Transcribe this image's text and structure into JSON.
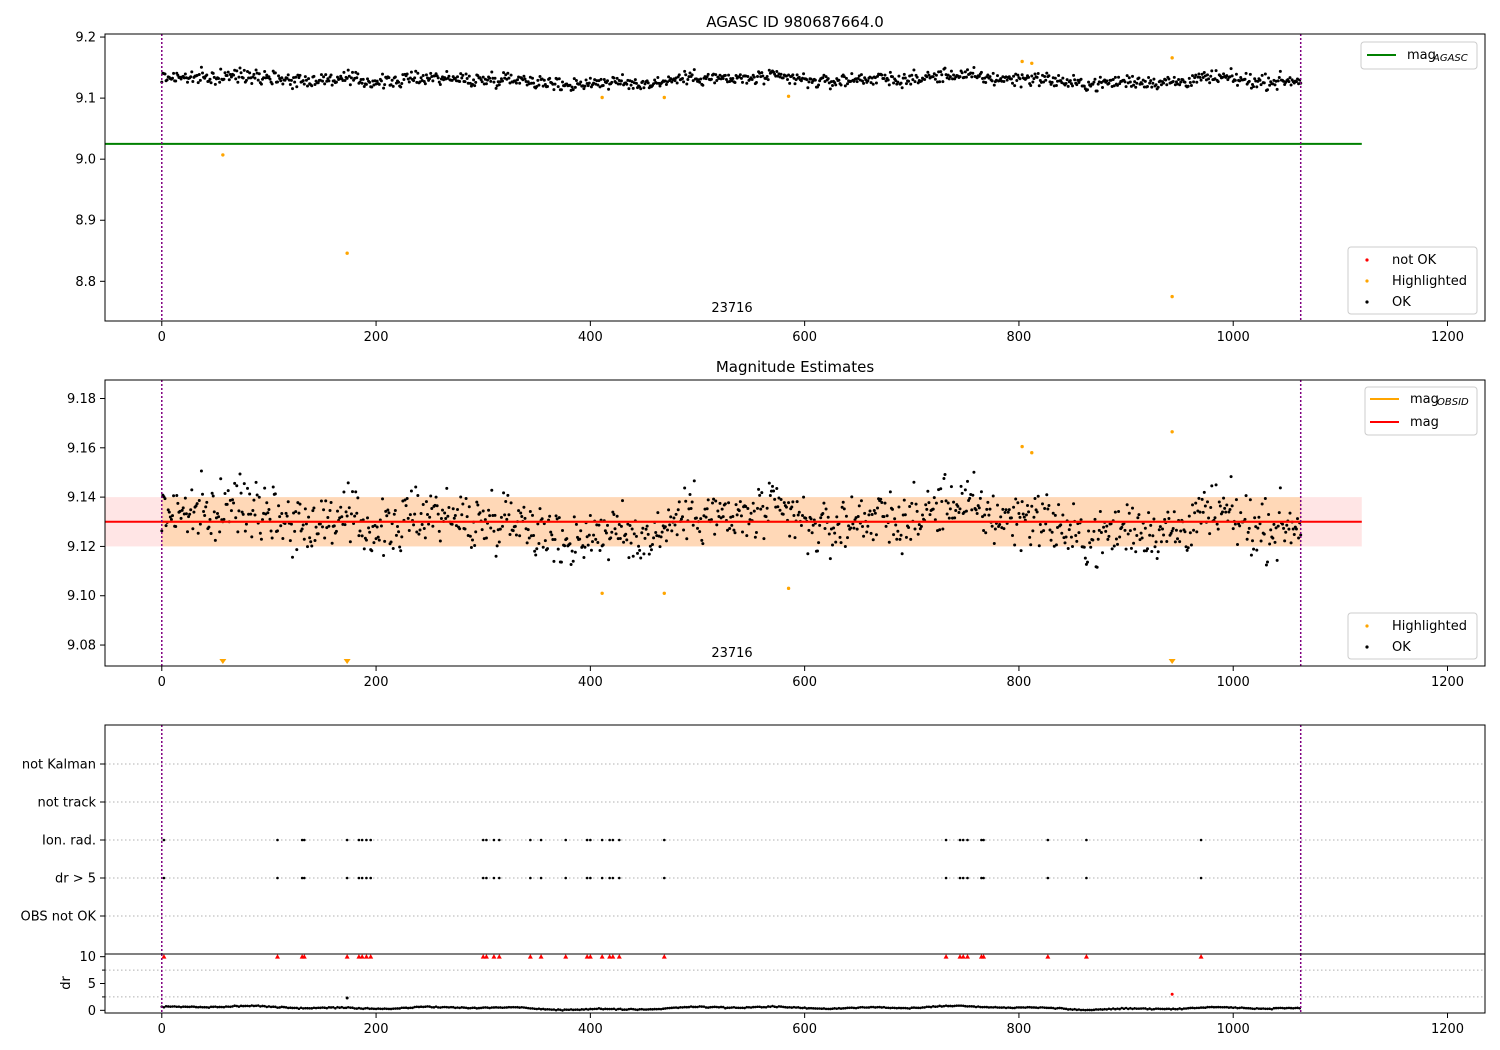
{
  "chart_data": [
    {
      "type": "scatter",
      "title": "AGASC ID 980687664.0",
      "xlim": [
        -53,
        1235
      ],
      "ylim": [
        8.735,
        9.205
      ],
      "x_ticks": [
        0,
        200,
        400,
        600,
        800,
        1000,
        1200
      ],
      "y_ticks": [
        8.8,
        8.9,
        9.0,
        9.1,
        9.2
      ],
      "y_tick_labels": [
        "8.8",
        "8.9",
        "9.0",
        "9.1",
        "9.2"
      ],
      "grid": false,
      "obsid_label": "23716",
      "obs_bounds": [
        0,
        1063
      ],
      "mag_agasc": 9.025,
      "mag_agasc_xrange": [
        -53,
        1120
      ],
      "legend_line": {
        "label_main": "mag",
        "label_sub": "AGASC",
        "color": "#008000",
        "placement": "top-right"
      },
      "legend_points": {
        "placement": "bottom-right",
        "entries": [
          {
            "label": "not OK",
            "color": "#ff0000"
          },
          {
            "label": "Highlighted",
            "color": "#ffa500"
          },
          {
            "label": "OK",
            "color": "#000000"
          }
        ]
      },
      "ok_trend": {
        "base": 9.13,
        "noise": 0.008,
        "range": [
          0,
          1063
        ],
        "n": 1064
      },
      "highlighted": [
        {
          "x": 57,
          "y": 9.007
        },
        {
          "x": 173,
          "y": 8.846
        },
        {
          "x": 411,
          "y": 9.101
        },
        {
          "x": 469,
          "y": 9.101
        },
        {
          "x": 585,
          "y": 9.103
        },
        {
          "x": 803,
          "y": 9.16
        },
        {
          "x": 812,
          "y": 9.157
        },
        {
          "x": 943,
          "y": 9.166
        },
        {
          "x": 943,
          "y": 8.775
        }
      ]
    },
    {
      "type": "scatter",
      "title": "Magnitude Estimates",
      "xlim": [
        -53,
        1235
      ],
      "ylim": [
        9.0715,
        9.1875
      ],
      "x_ticks": [
        0,
        200,
        400,
        600,
        800,
        1000,
        1200
      ],
      "y_ticks": [
        9.08,
        9.1,
        9.12,
        9.14,
        9.16,
        9.18
      ],
      "y_tick_labels": [
        "9.08",
        "9.10",
        "9.12",
        "9.14",
        "9.16",
        "9.18"
      ],
      "grid": false,
      "obsid_label": "23716",
      "obs_bounds": [
        0,
        1063
      ],
      "mag": 9.13,
      "mag_band": [
        9.12,
        9.14
      ],
      "mag_band_xrange": [
        -53,
        1120
      ],
      "mag_obsid_band_xrange": [
        0,
        1063
      ],
      "legend_line": {
        "placement": "top-right",
        "entries": [
          {
            "label_main": "mag",
            "label_sub": "OBSID",
            "color": "#ffa500"
          },
          {
            "label_main": "mag",
            "label_sub": "",
            "color": "#ff0000"
          }
        ]
      },
      "legend_points": {
        "placement": "bottom-right",
        "entries": [
          {
            "label": "Highlighted",
            "color": "#ffa500"
          },
          {
            "label": "OK",
            "color": "#000000"
          }
        ]
      },
      "highlighted": [
        {
          "x": 411,
          "y": 9.101
        },
        {
          "x": 469,
          "y": 9.101
        },
        {
          "x": 585,
          "y": 9.103
        },
        {
          "x": 803,
          "y": 9.1605
        },
        {
          "x": 812,
          "y": 9.158
        },
        {
          "x": 943,
          "y": 9.1665
        }
      ],
      "out_of_range_low": [
        57,
        173,
        943
      ]
    },
    {
      "type": "scatter",
      "title": "",
      "xlim": [
        -53,
        1235
      ],
      "categories": [
        "OBS not OK",
        "dr > 5",
        "Ion. rad.",
        "not track",
        "not Kalman"
      ],
      "flag_x": [
        2,
        108,
        131,
        133,
        173,
        184,
        187,
        191,
        195,
        300,
        303,
        310,
        315,
        344,
        354,
        377,
        397,
        400,
        411,
        418,
        421,
        427,
        469,
        732,
        745,
        748,
        752,
        765,
        767,
        827,
        863,
        970
      ],
      "grid": "horizontal dotted",
      "obs_bounds": [
        0,
        1063
      ]
    },
    {
      "type": "scatter",
      "title": "",
      "ylabel": "dr",
      "xlim": [
        -53,
        1235
      ],
      "ylim": [
        -0.5,
        10.5
      ],
      "x_ticks": [
        0,
        200,
        400,
        600,
        800,
        1000,
        1200
      ],
      "y_ticks": [
        0,
        5,
        10
      ],
      "y_tick_labels": [
        "0",
        "5",
        "10"
      ],
      "clipped_value": 10,
      "dr_trend": {
        "base": 0.45,
        "range": [
          0,
          1063
        ],
        "n": 1064
      },
      "outliers": [
        {
          "x": 173,
          "y": 2.3,
          "color": "#000000"
        },
        {
          "x": 943,
          "y": 3.0,
          "color": "#ff0000"
        }
      ]
    }
  ]
}
